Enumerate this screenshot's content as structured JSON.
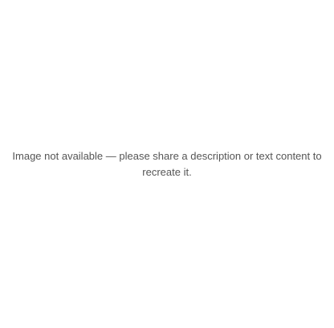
{
  "notice": "Image not available — please share a description or text content to recreate it."
}
